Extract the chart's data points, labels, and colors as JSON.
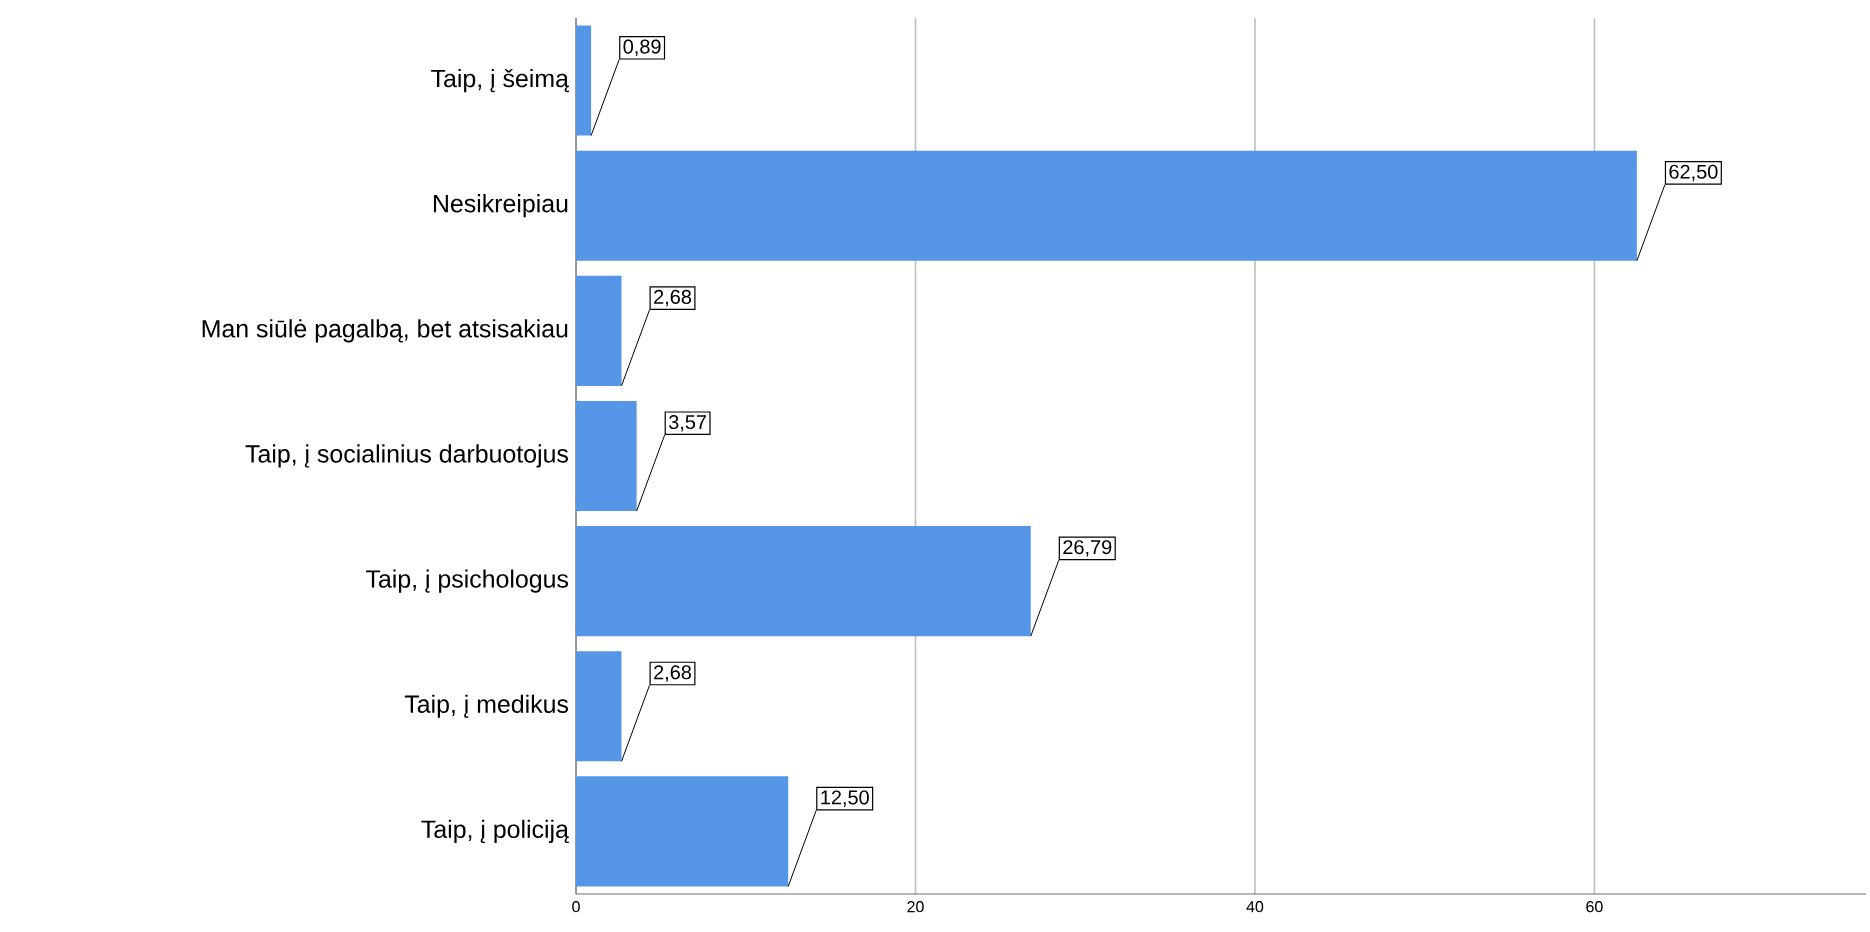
{
  "chart_data": {
    "type": "bar",
    "orientation": "horizontal",
    "categories": [
      "Taip, į šeimą",
      "Nesikreipiau",
      "Man siūlė pagalbą, bet atsisakiau",
      "Taip, į socialinius darbuotojus",
      "Taip, į psichologus",
      "Taip, į medikus",
      "Taip, į policiją"
    ],
    "values": [
      0.89,
      62.5,
      2.68,
      3.57,
      26.79,
      2.68,
      12.5
    ],
    "value_labels": [
      "0,89",
      "62,50",
      "2,68",
      "3,57",
      "26,79",
      "2,68",
      "12,50"
    ],
    "color": "#5596e6",
    "xlim": [
      0,
      76
    ],
    "xticks": [
      0,
      20,
      40,
      60
    ],
    "grid": "x"
  }
}
